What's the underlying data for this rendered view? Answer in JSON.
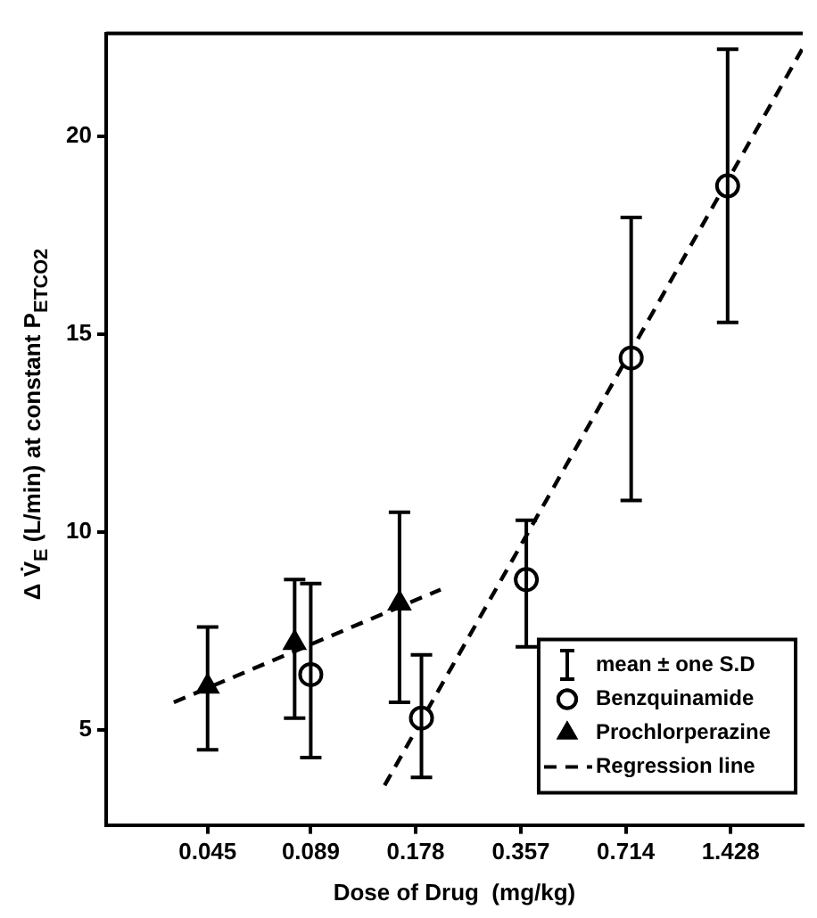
{
  "chart_data": {
    "type": "scatter",
    "xlabel": "Dose of Drug  (mg/kg)",
    "ylabel": "Δ V̇$_{E}$ (L/min) at constant P$_{ETCO2}$",
    "log": "x",
    "xlim": [
      0.023,
      2.3
    ],
    "xticks": [
      0.045,
      0.089,
      0.178,
      0.357,
      0.714,
      1.428
    ],
    "ylim": [
      2.6,
      22.6
    ],
    "yticks": [
      5,
      10,
      15,
      20
    ],
    "grid": false,
    "legend": "bottom right",
    "annotations": [
      "mean ± one S.D"
    ],
    "series": [
      {
        "name": "Benzquinamide",
        "marker": "circle",
        "color": "#000000",
        "x": [
          0.089,
          0.185,
          0.37,
          0.74,
          1.4
        ],
        "values": [
          6.4,
          5.3,
          8.8,
          14.4,
          18.75
        ],
        "errors": [
          [
            4.3,
            8.7
          ],
          [
            3.8,
            6.9
          ],
          [
            7.1,
            10.3
          ],
          [
            10.8,
            17.95
          ],
          [
            15.3,
            22.2
          ]
        ]
      },
      {
        "name": "Prochlorperazine",
        "marker": "triangle",
        "color": "#000000",
        "x": [
          0.045,
          0.08,
          0.16
        ],
        "values": [
          6.1,
          7.2,
          8.2
        ],
        "errors": [
          [
            4.5,
            7.6
          ],
          [
            5.3,
            8.8
          ],
          [
            5.7,
            10.5
          ]
        ]
      },
      {
        "name": "Regression line",
        "type": "line",
        "marker": "none",
        "line_style": "dashed",
        "color": "#000000",
        "x": [
          0.145,
          2.29
        ],
        "values": [
          3.6,
          22.2
        ]
      },
      {
        "type": "line",
        "marker": "none",
        "line_style": "dashed",
        "color": "#000000",
        "x": [
          0.036,
          0.21
        ],
        "values": [
          5.7,
          8.55
        ]
      }
    ]
  }
}
